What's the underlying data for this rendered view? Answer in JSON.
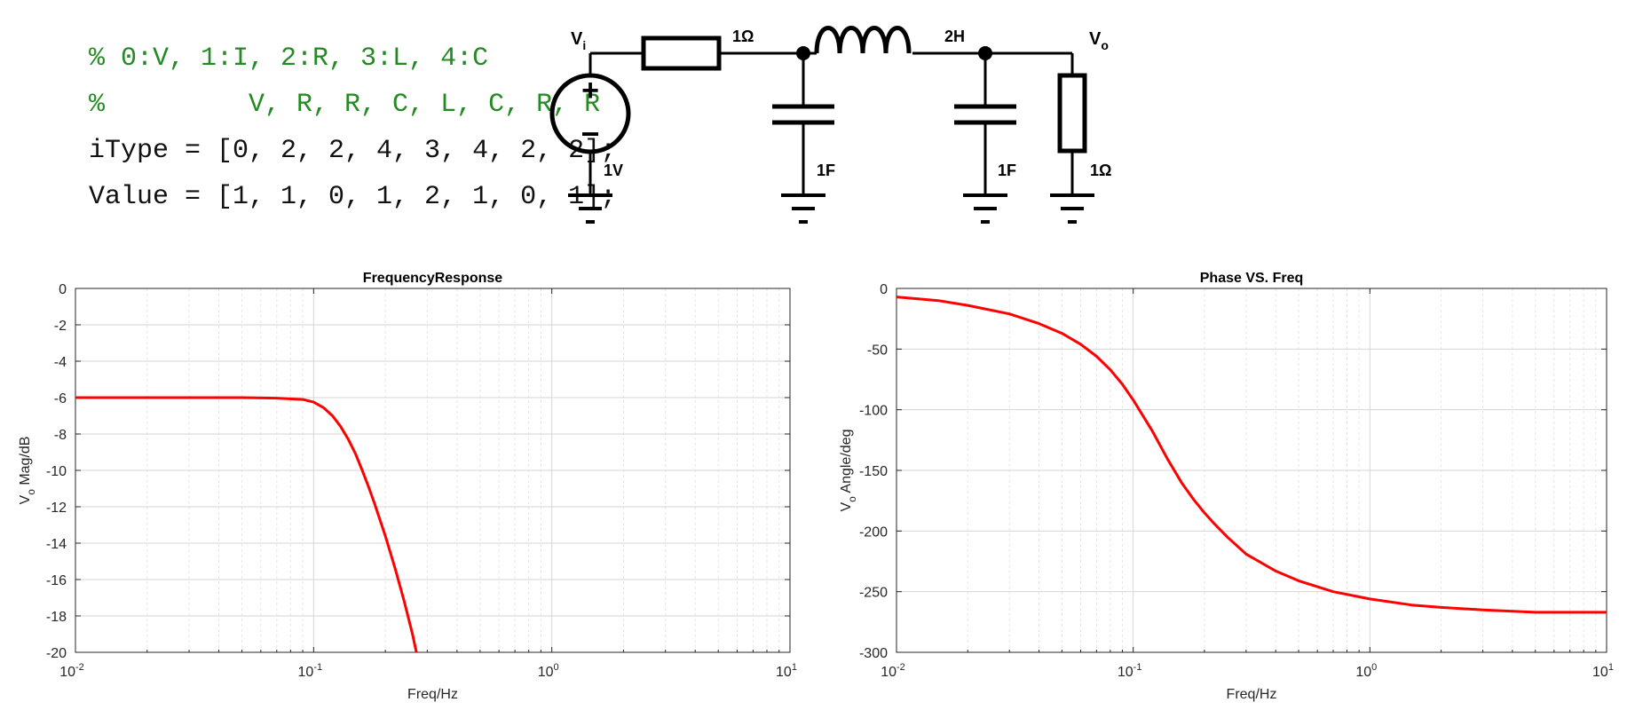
{
  "code": {
    "lines": [
      "% 0:V, 1:I, 2:R, 3:L, 4:C",
      "%         V, R, R, C, L, C, R, R",
      "iType = [0, 2, 2, 4, 3, 4, 2, 2];",
      "Value = [1, 1, 0, 1, 2, 1, 0, 1];"
    ]
  },
  "circuit": {
    "vi_label": "V",
    "vi_sub": "i",
    "vo_label": "V",
    "vo_sub": "o",
    "source_value": "1V",
    "r1_value": "1Ω",
    "l_value": "2H",
    "c1_value": "1F",
    "c2_value": "1F",
    "rload_value": "1Ω",
    "plus_sign": "+",
    "minus_sign": "−"
  },
  "chart_data": [
    {
      "type": "line",
      "title": "FrequencyResponse",
      "xlabel": "Freq/Hz",
      "ylabel": "V",
      "ylabel_sub": "o",
      "ylabel_rest": " Mag/dB",
      "xscale": "log",
      "xlim": [
        0.01,
        10
      ],
      "ylim": [
        -20,
        0
      ],
      "grid": true,
      "xticks": [
        0.01,
        0.1,
        1,
        10
      ],
      "xtick_base": "10",
      "xtick_exps": [
        "-2",
        "-1",
        "0",
        "1"
      ],
      "yticks": [
        0,
        -2,
        -4,
        -6,
        -8,
        -10,
        -12,
        -14,
        -16,
        -18,
        -20
      ],
      "ytick_labels": [
        "0",
        "-2",
        "-4",
        "-6",
        "-8",
        "-10",
        "-12",
        "-14",
        "-16",
        "-18",
        "-20"
      ],
      "series": [
        {
          "color": "#ff0000",
          "x": [
            0.01,
            0.02,
            0.05,
            0.07,
            0.09,
            0.1,
            0.11,
            0.12,
            0.13,
            0.14,
            0.15,
            0.16,
            0.17,
            0.18,
            0.2,
            0.22,
            0.24,
            0.26,
            0.27
          ],
          "y": [
            -6.0,
            -6.0,
            -6.0,
            -6.03,
            -6.1,
            -6.25,
            -6.55,
            -7.0,
            -7.6,
            -8.3,
            -9.1,
            -10.0,
            -10.9,
            -11.8,
            -13.6,
            -15.4,
            -17.2,
            -19.0,
            -20.0
          ]
        }
      ]
    },
    {
      "type": "line",
      "title": "Phase VS. Freq",
      "xlabel": "Freq/Hz",
      "ylabel": "V",
      "ylabel_sub": "o",
      "ylabel_rest": " Angle/deg",
      "xscale": "log",
      "xlim": [
        0.01,
        10
      ],
      "ylim": [
        -300,
        0
      ],
      "grid": true,
      "xticks": [
        0.01,
        0.1,
        1,
        10
      ],
      "xtick_base": "10",
      "xtick_exps": [
        "-2",
        "-1",
        "0",
        "1"
      ],
      "yticks": [
        0,
        -50,
        -100,
        -150,
        -200,
        -250,
        -300
      ],
      "ytick_labels": [
        "0",
        "-50",
        "-100",
        "-150",
        "-200",
        "-250",
        "-300"
      ],
      "series": [
        {
          "color": "#ff0000",
          "x": [
            0.01,
            0.015,
            0.02,
            0.03,
            0.04,
            0.05,
            0.06,
            0.07,
            0.08,
            0.09,
            0.1,
            0.12,
            0.14,
            0.16,
            0.18,
            0.2,
            0.22,
            0.25,
            0.3,
            0.4,
            0.5,
            0.7,
            1.0,
            1.5,
            2,
            3,
            5,
            7,
            10
          ],
          "y": [
            -7,
            -10,
            -14,
            -21,
            -29,
            -37,
            -46,
            -56,
            -67,
            -79,
            -92,
            -117,
            -141,
            -160,
            -174,
            -185,
            -194,
            -205,
            -219,
            -233,
            -241,
            -250,
            -256,
            -261,
            -263,
            -265,
            -267,
            -267,
            -267
          ]
        }
      ]
    }
  ]
}
